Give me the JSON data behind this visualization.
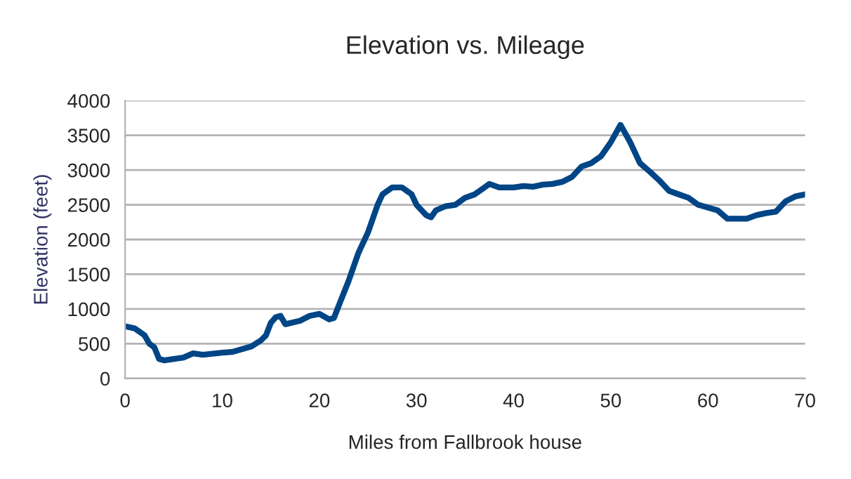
{
  "chart_data": {
    "type": "line",
    "title": "Elevation vs. Mileage",
    "xlabel": "Miles from Fallbrook house",
    "ylabel": "Elevation (feet)",
    "xlim": [
      0,
      70
    ],
    "xticks": [
      0,
      10,
      20,
      30,
      40,
      50,
      60,
      70
    ],
    "ylim": [
      0,
      4000
    ],
    "yticks": [
      0,
      500,
      1000,
      1500,
      2000,
      2500,
      3000,
      3500,
      4000
    ],
    "grid": "y",
    "marker": "none",
    "line_style": "solid",
    "series": [
      {
        "color": "#004586",
        "x": [
          0,
          1,
          2,
          2.5,
          3,
          3.5,
          4,
          5,
          6,
          7,
          8,
          10,
          11,
          12,
          13,
          14,
          14.5,
          15,
          15.5,
          16,
          16.5,
          18,
          19,
          20,
          21,
          21.5,
          22,
          23,
          24,
          25,
          26,
          26.5,
          27.5,
          28.5,
          29.5,
          30,
          31,
          31.5,
          32,
          33,
          34,
          35,
          36,
          37,
          37.5,
          38.5,
          40,
          41,
          42,
          43,
          44,
          45,
          46,
          47,
          48,
          49,
          50,
          51,
          52,
          53,
          54,
          55,
          56,
          57,
          58,
          59,
          60,
          61,
          62,
          63,
          64,
          65,
          66,
          67,
          68,
          69,
          70
        ],
        "values": [
          750,
          720,
          620,
          500,
          450,
          280,
          260,
          280,
          300,
          360,
          340,
          370,
          380,
          420,
          460,
          550,
          620,
          800,
          880,
          900,
          780,
          830,
          900,
          930,
          850,
          870,
          1050,
          1400,
          1800,
          2100,
          2500,
          2650,
          2750,
          2750,
          2650,
          2500,
          2350,
          2320,
          2420,
          2480,
          2500,
          2600,
          2650,
          2750,
          2800,
          2750,
          2750,
          2770,
          2760,
          2790,
          2800,
          2830,
          2900,
          3050,
          3100,
          3200,
          3400,
          3650,
          3400,
          3100,
          2980,
          2850,
          2700,
          2650,
          2600,
          2500,
          2460,
          2420,
          2300,
          2300,
          2300,
          2350,
          2380,
          2400,
          2550,
          2620,
          2650
        ]
      }
    ]
  }
}
